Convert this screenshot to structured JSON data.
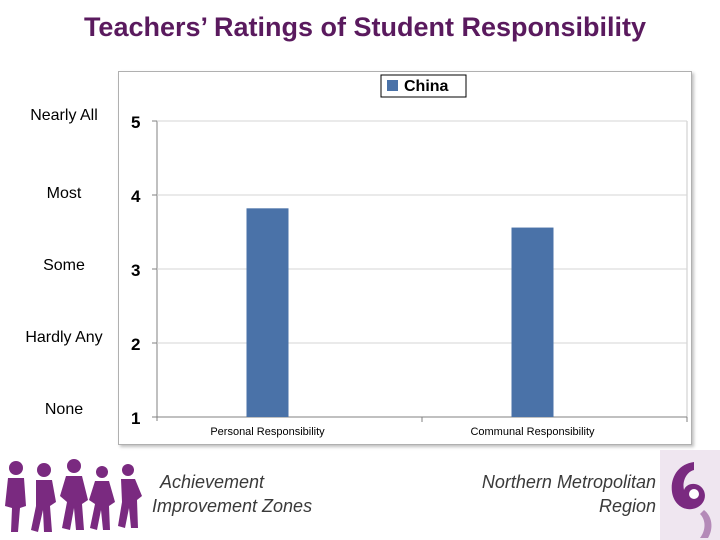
{
  "slide": {
    "title": "Teachers’ Ratings of Student Responsibility",
    "scale_labels": [
      "Nearly All",
      "Most",
      "Some",
      "Hardly Any",
      "None"
    ],
    "footer_left_line1": "Achievement",
    "footer_left_line2": "Improvement Zones",
    "footer_right_line1": "Northern Metropolitan",
    "footer_right_line2": "Region"
  },
  "chart_data": {
    "type": "bar",
    "categories": [
      "Personal Responsibility",
      "Communal Responsibility"
    ],
    "series": [
      {
        "name": "China",
        "values": [
          3.82,
          3.56
        ],
        "color": "#4a72a8"
      }
    ],
    "ylim": [
      1,
      5
    ],
    "yticks": [
      5,
      4,
      3,
      2,
      1
    ],
    "grid": true,
    "legend": "top-center"
  },
  "colors": {
    "title": "#5a1a5e",
    "bar": "#4a72a8",
    "logo_purple": "#7a2a80"
  }
}
